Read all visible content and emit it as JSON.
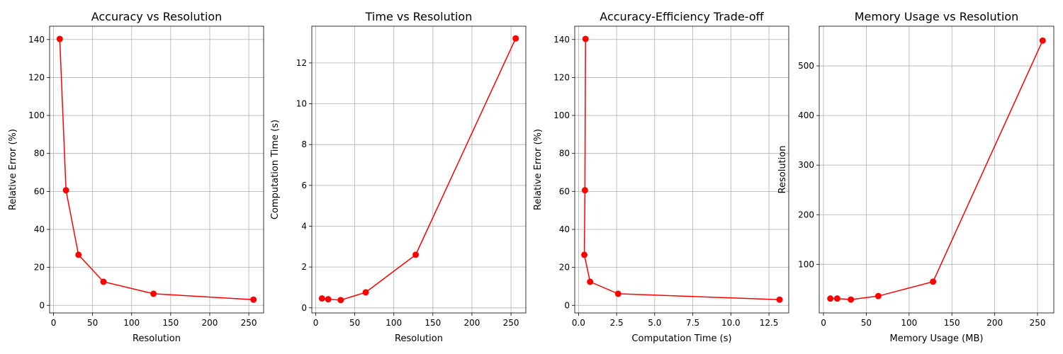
{
  "figure": {
    "background": "#ffffff",
    "grid_color": "#b0b0b0",
    "series_color": "#ff0000"
  },
  "chart_data": [
    {
      "type": "line",
      "title": "Accuracy vs Resolution",
      "xlabel": "Resolution",
      "ylabel": "Relative Error (%)",
      "grid": true,
      "marker": "circle",
      "xlim": [
        -5,
        269
      ],
      "ylim": [
        -4,
        147
      ],
      "xticks": [
        0,
        50,
        100,
        150,
        200,
        250
      ],
      "xtick_labels": [
        "0",
        "50",
        "100",
        "150",
        "200",
        "250"
      ],
      "yticks": [
        0,
        20,
        40,
        60,
        80,
        100,
        120,
        140
      ],
      "ytick_labels": [
        "0",
        "20",
        "40",
        "60",
        "80",
        "100",
        "120",
        "140"
      ],
      "series": [
        {
          "x": [
            8,
            16,
            32,
            64,
            128,
            256
          ],
          "y": [
            140.3,
            60.6,
            26.6,
            12.4,
            6.1,
            3.0
          ]
        }
      ]
    },
    {
      "type": "line",
      "title": "Time vs Resolution",
      "xlabel": "Resolution",
      "ylabel": "Computation Time (s)",
      "grid": true,
      "marker": "circle",
      "xlim": [
        -5,
        269
      ],
      "ylim": [
        -0.25,
        13.8
      ],
      "xticks": [
        0,
        50,
        100,
        150,
        200,
        250
      ],
      "xtick_labels": [
        "0",
        "50",
        "100",
        "150",
        "200",
        "250"
      ],
      "yticks": [
        0,
        2,
        4,
        6,
        8,
        10,
        12
      ],
      "ytick_labels": [
        "0",
        "2",
        "4",
        "6",
        "8",
        "10",
        "12"
      ],
      "series": [
        {
          "x": [
            8,
            16,
            32,
            64,
            128,
            256
          ],
          "y": [
            0.46,
            0.42,
            0.38,
            0.76,
            2.6,
            13.2
          ]
        }
      ]
    },
    {
      "type": "line",
      "title": "Accuracy-Efficiency Trade-off",
      "xlabel": "Computation Time (s)",
      "ylabel": "Relative Error (%)",
      "grid": true,
      "marker": "circle",
      "xlim": [
        -0.25,
        13.8
      ],
      "ylim": [
        -4,
        147
      ],
      "xticks": [
        0,
        2.5,
        5,
        7.5,
        10,
        12.5
      ],
      "xtick_labels": [
        "0.0",
        "2.5",
        "5.0",
        "7.5",
        "10.0",
        "12.5"
      ],
      "yticks": [
        0,
        20,
        40,
        60,
        80,
        100,
        120,
        140
      ],
      "ytick_labels": [
        "0",
        "20",
        "40",
        "60",
        "80",
        "100",
        "120",
        "140"
      ],
      "series": [
        {
          "x": [
            0.46,
            0.42,
            0.38,
            0.76,
            2.6,
            13.2
          ],
          "y": [
            140.3,
            60.6,
            26.6,
            12.4,
            6.1,
            3.0
          ]
        }
      ]
    },
    {
      "type": "line",
      "title": "Memory Usage vs Resolution",
      "xlabel": "Memory Usage (MB)",
      "ylabel": "Resolution",
      "grid": true,
      "marker": "circle",
      "xlim": [
        -5,
        269
      ],
      "ylim": [
        2,
        580
      ],
      "xticks": [
        0,
        50,
        100,
        150,
        200,
        250
      ],
      "xtick_labels": [
        "0",
        "50",
        "100",
        "150",
        "200",
        "250"
      ],
      "yticks": [
        100,
        200,
        300,
        400,
        500
      ],
      "ytick_labels": [
        "100",
        "200",
        "300",
        "400",
        "500"
      ],
      "series": [
        {
          "x": [
            8,
            16,
            32,
            64,
            128,
            256
          ],
          "y": [
            31,
            31,
            29,
            36,
            65,
            551
          ]
        }
      ]
    }
  ]
}
